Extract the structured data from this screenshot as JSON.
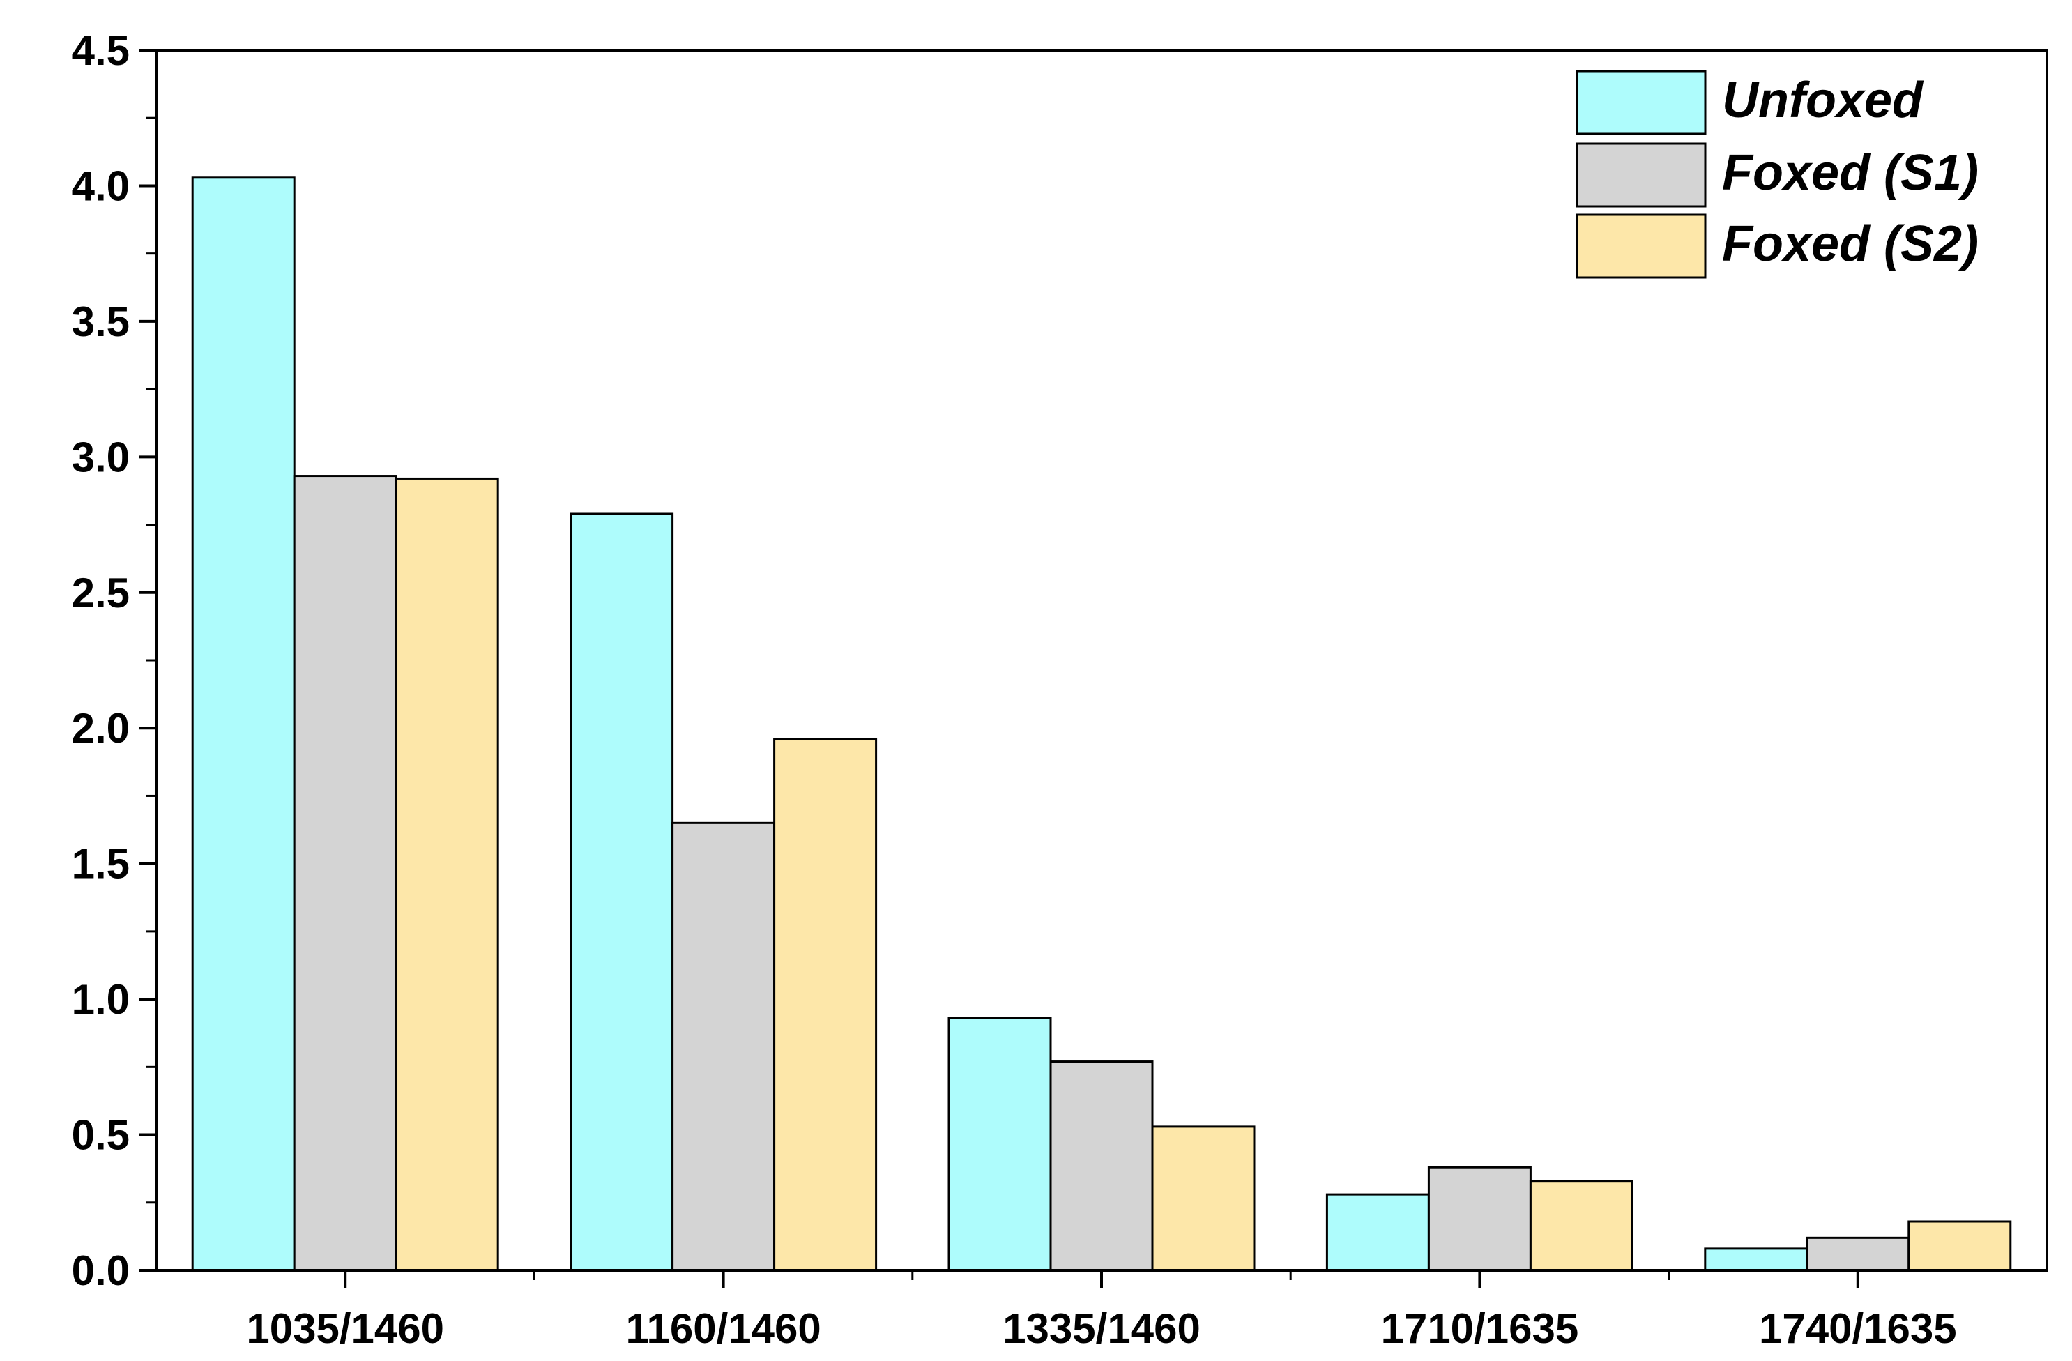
{
  "chart_data": {
    "type": "bar",
    "title": "",
    "xlabel": "",
    "ylabel": "",
    "categories": [
      "1035/1460",
      "1160/1460",
      "1335/1460",
      "1710/1635",
      "1740/1635"
    ],
    "series": [
      {
        "name": "Unfoxed",
        "color": "#aefcfc",
        "values": [
          4.03,
          2.79,
          0.93,
          0.28,
          0.08
        ]
      },
      {
        "name": "Foxed (S1)",
        "color": "#d4d4d4",
        "values": [
          2.93,
          1.65,
          0.77,
          0.38,
          0.12
        ]
      },
      {
        "name": "Foxed (S2)",
        "color": "#fde7a9",
        "values": [
          2.92,
          1.96,
          0.53,
          0.33,
          0.18
        ]
      }
    ],
    "ylim": [
      0,
      4.5
    ],
    "yticks": [
      "0.0",
      "0.5",
      "1.0",
      "1.5",
      "2.0",
      "2.5",
      "3.0",
      "3.5",
      "4.0",
      "4.5"
    ],
    "grid": false,
    "legend_position": "top-right",
    "bar_outline_color": "#000000"
  }
}
